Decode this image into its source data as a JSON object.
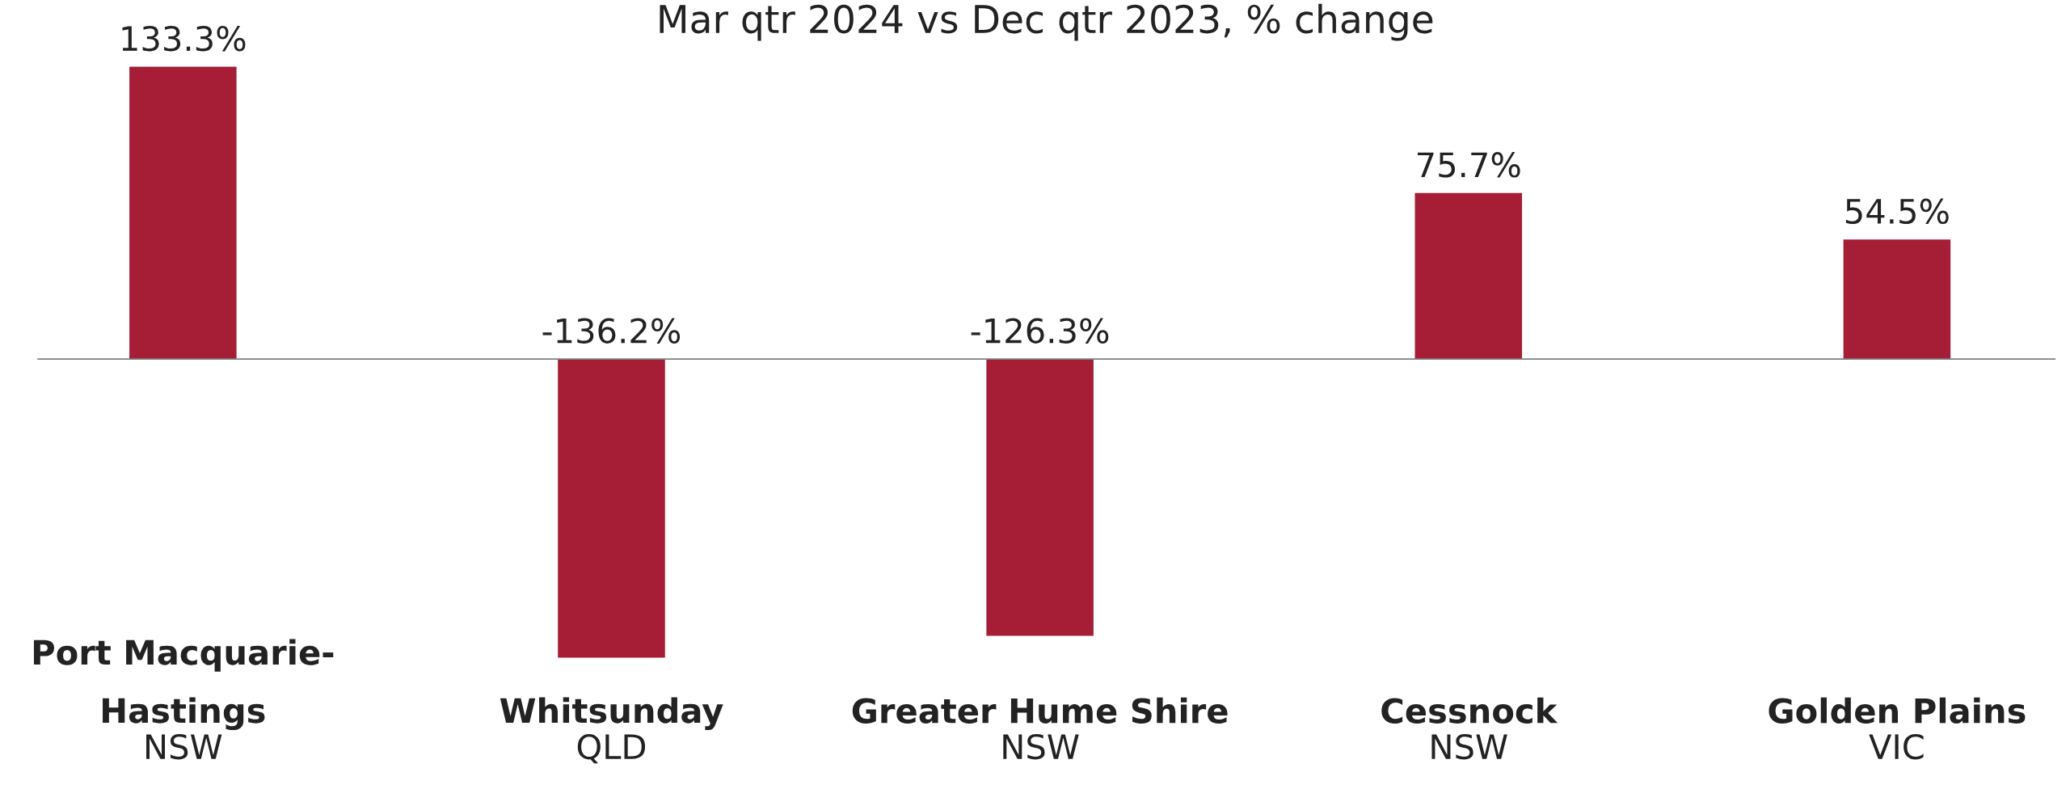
{
  "chart_data": {
    "type": "bar",
    "title": "Mar qtr 2024 vs Dec qtr 2023, % change",
    "categories": [
      "Port Macquarie-\nHastings\nNSW",
      "Whitsunday\nQLD",
      "Greater Hume Shire\nNSW",
      "Cessnock\nNSW",
      "Golden Plains\nVIC"
    ],
    "values": [
      133.3,
      -136.2,
      -126.3,
      75.7,
      54.5
    ],
    "value_labels": [
      "133.3%",
      "-136.2%",
      "-126.3%",
      "75.7%",
      "54.5%"
    ],
    "color": "#a51e36"
  }
}
